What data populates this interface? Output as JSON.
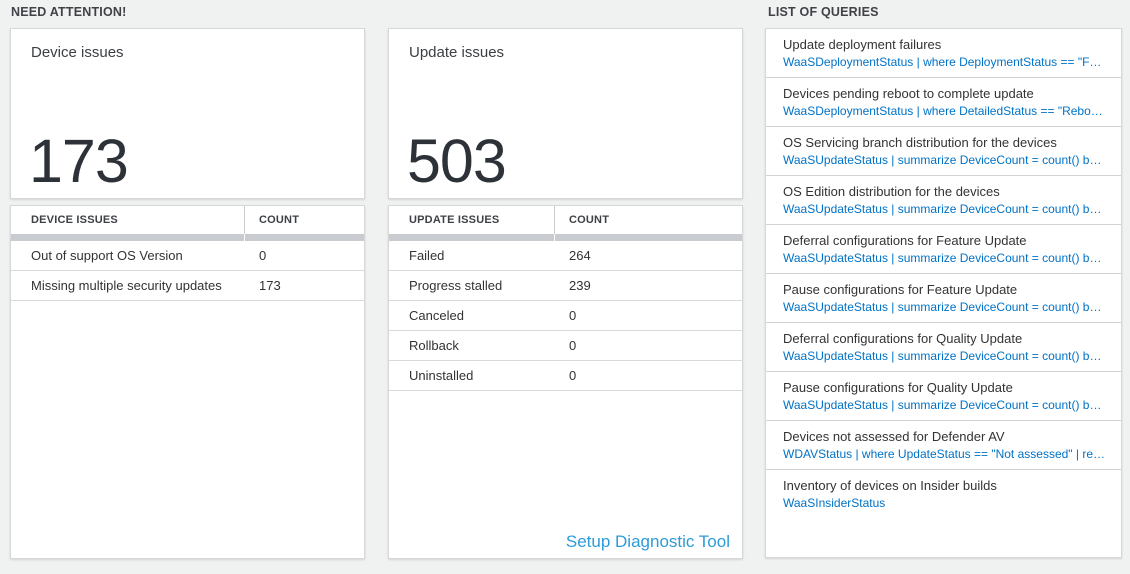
{
  "need_attention": {
    "section_title": "NEED ATTENTION!",
    "device_card": {
      "title": "Device issues",
      "count": "173"
    },
    "update_card": {
      "title": "Update issues",
      "count": "503"
    },
    "device_table": {
      "columns": [
        "DEVICE ISSUES",
        "COUNT"
      ],
      "rows": [
        {
          "label": "Out of support OS Version",
          "count": "0"
        },
        {
          "label": "Missing multiple security updates",
          "count": "173"
        }
      ]
    },
    "update_table": {
      "columns": [
        "UPDATE ISSUES",
        "COUNT"
      ],
      "rows": [
        {
          "label": "Failed",
          "count": "264"
        },
        {
          "label": "Progress stalled",
          "count": "239"
        },
        {
          "label": "Canceled",
          "count": "0"
        },
        {
          "label": "Rollback",
          "count": "0"
        },
        {
          "label": "Uninstalled",
          "count": "0"
        }
      ]
    },
    "setup_link": "Setup Diagnostic Tool"
  },
  "queries": {
    "section_title": "LIST OF QUERIES",
    "items": [
      {
        "title": "Update deployment failures",
        "query": "WaaSDeploymentStatus | where DeploymentStatus == \"Failed\" |..."
      },
      {
        "title": "Devices pending reboot to complete update",
        "query": "WaaSDeploymentStatus | where DetailedStatus == \"Reboot pend..."
      },
      {
        "title": "OS Servicing branch distribution for the devices",
        "query": "WaaSUpdateStatus | summarize DeviceCount = count() by OSSer..."
      },
      {
        "title": "OS Edition distribution for the devices",
        "query": "WaaSUpdateStatus | summarize DeviceCount = count() by OSEdit..."
      },
      {
        "title": "Deferral configurations for Feature Update",
        "query": "WaaSUpdateStatus | summarize DeviceCount = count() by Featur..."
      },
      {
        "title": "Pause configurations for Feature Update",
        "query": "WaaSUpdateStatus | summarize DeviceCount = count() by Featur..."
      },
      {
        "title": "Deferral configurations for Quality Update",
        "query": "WaaSUpdateStatus | summarize DeviceCount = count() by Qualit..."
      },
      {
        "title": "Pause configurations for Quality Update",
        "query": "WaaSUpdateStatus | summarize DeviceCount = count() by Qualit..."
      },
      {
        "title": "Devices not assessed for Defender AV",
        "query": "WDAVStatus | where UpdateStatus == \"Not assessed\" | render ta..."
      },
      {
        "title": "Inventory of devices on Insider builds",
        "query": "WaaSInsiderStatus"
      }
    ]
  },
  "colors": {
    "query_link_blue": "#0072c6",
    "setup_link_blue": "#2d9bd8",
    "header_bar_gray": "#c8ccd0"
  }
}
